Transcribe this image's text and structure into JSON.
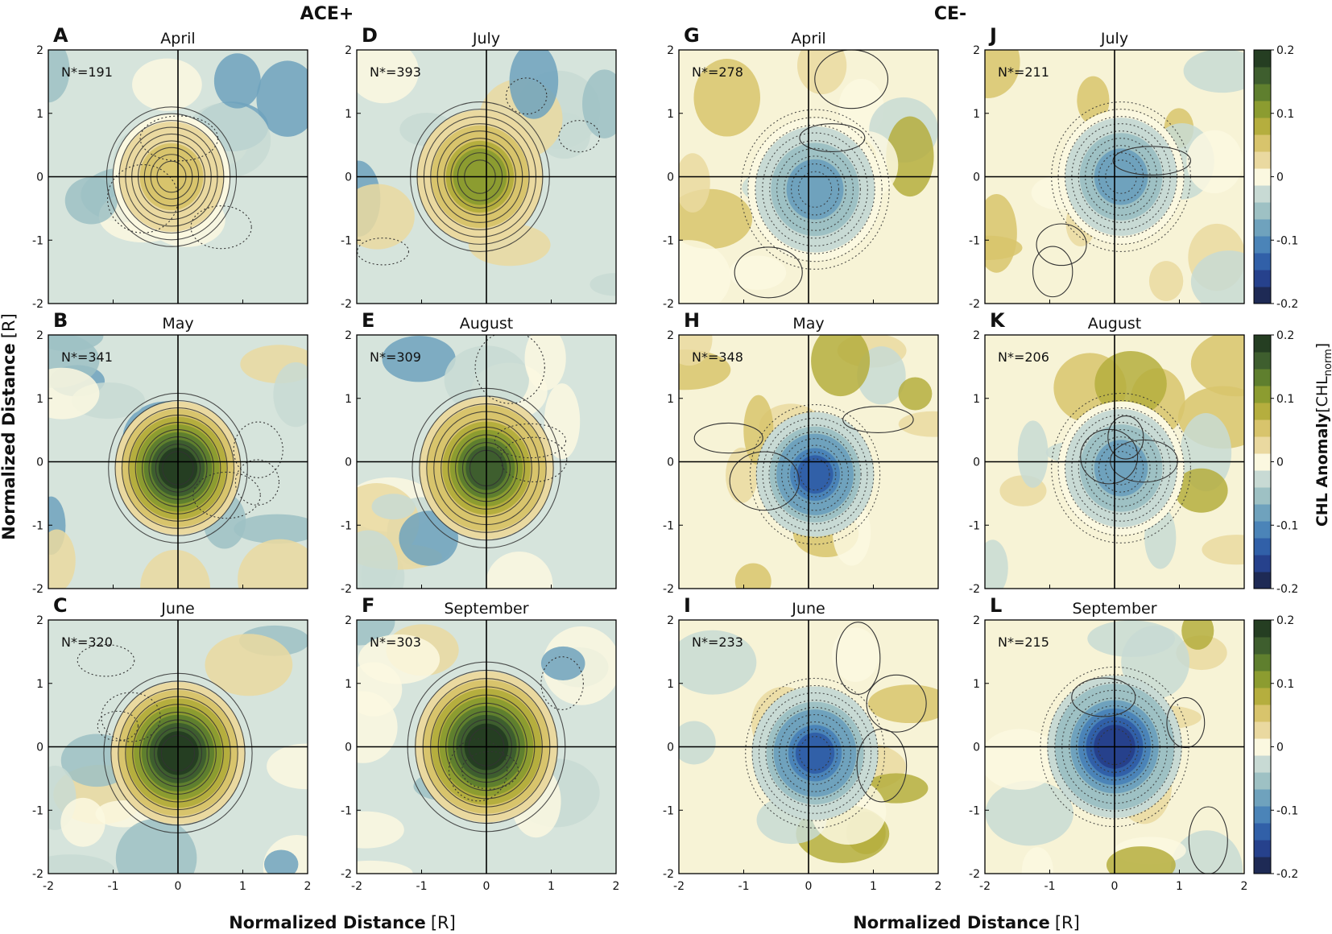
{
  "group_titles": {
    "left": "ACE+",
    "right": "CE-"
  },
  "axis": {
    "xlabel_bold": "Normalized Distance",
    "xlabel_unit": "[R]",
    "ylabel_bold": "Normalized Distance",
    "ylabel_unit": "[R]"
  },
  "colorbar": {
    "title_bold": "CHL Anomaly",
    "title_unit_pre": "[CHL",
    "title_unit_sub": "norm",
    "title_unit_post": "]",
    "tick_labels": [
      "0.2",
      "0.1",
      "0",
      "-0.1",
      "-0.2"
    ],
    "tick_values": [
      0.2,
      0.1,
      0,
      -0.1,
      -0.2
    ],
    "colors": [
      "#1e2a55",
      "#26418c",
      "#3160a8",
      "#4b84b8",
      "#6fa2bd",
      "#9ec1c4",
      "#c8dad4",
      "#fbf8e0",
      "#ead9a0",
      "#d8c46c",
      "#b5ae3e",
      "#8c9c30",
      "#5f7f2e",
      "#3e5e2e",
      "#253e22"
    ]
  },
  "chart_data": [
    {
      "type": "heatmap",
      "panel": "A",
      "month": "April",
      "n_label": "N*=191",
      "group": "ACE+",
      "peak_anomaly": 0.07,
      "center": [
        -0.1,
        0.0
      ],
      "radius": 0.7,
      "contours": "solid-positive",
      "xlim": [
        -2,
        2
      ],
      "ylim": [
        -2,
        2
      ],
      "xticks": [
        "-2",
        "-1",
        "0",
        "1",
        "2"
      ],
      "yticks": [
        "2",
        "1",
        "0",
        "-1",
        "-2"
      ]
    },
    {
      "type": "heatmap",
      "panel": "B",
      "month": "May",
      "n_label": "N*=341",
      "group": "ACE+",
      "peak_anomaly": 0.2,
      "center": [
        0.0,
        -0.1
      ],
      "radius": 0.75,
      "contours": "solid-positive",
      "xlim": [
        -2,
        2
      ],
      "ylim": [
        -2,
        2
      ],
      "xticks": [
        "-2",
        "-1",
        "0",
        "1",
        "2"
      ],
      "yticks": [
        "2",
        "1",
        "0",
        "-1",
        "-2"
      ]
    },
    {
      "type": "heatmap",
      "panel": "C",
      "month": "June",
      "n_label": "N*=320",
      "group": "ACE+",
      "peak_anomaly": 0.2,
      "center": [
        0.0,
        -0.1
      ],
      "radius": 0.8,
      "contours": "solid-positive",
      "xlim": [
        -2,
        2
      ],
      "ylim": [
        -2,
        2
      ],
      "xticks": [
        "-2",
        "-1",
        "0",
        "1",
        "2"
      ],
      "yticks": [
        "2",
        "1",
        "0",
        "-1",
        "-2"
      ]
    },
    {
      "type": "heatmap",
      "panel": "D",
      "month": "July",
      "n_label": "N*=393",
      "group": "ACE+",
      "peak_anomaly": 0.12,
      "center": [
        -0.1,
        0.0
      ],
      "radius": 0.75,
      "contours": "solid-positive",
      "xlim": [
        -2,
        2
      ],
      "ylim": [
        -2,
        2
      ],
      "xticks": [
        "-2",
        "-1",
        "0",
        "1",
        "2"
      ],
      "yticks": [
        "2",
        "1",
        "0",
        "-1",
        "-2"
      ]
    },
    {
      "type": "heatmap",
      "panel": "E",
      "month": "August",
      "n_label": "N*=309",
      "group": "ACE+",
      "peak_anomaly": 0.16,
      "center": [
        0.0,
        -0.1
      ],
      "radius": 0.8,
      "contours": "solid-positive",
      "xlim": [
        -2,
        2
      ],
      "ylim": [
        -2,
        2
      ],
      "xticks": [
        "-2",
        "-1",
        "0",
        "1",
        "2"
      ],
      "yticks": [
        "2",
        "1",
        "0",
        "-1",
        "-2"
      ]
    },
    {
      "type": "heatmap",
      "panel": "F",
      "month": "September",
      "n_label": "N*=303",
      "group": "ACE+",
      "peak_anomaly": 0.2,
      "center": [
        0.0,
        0.0
      ],
      "radius": 0.85,
      "contours": "solid-positive",
      "xlim": [
        -2,
        2
      ],
      "ylim": [
        -2,
        2
      ],
      "xticks": [
        "-2",
        "-1",
        "0",
        "1",
        "2"
      ],
      "yticks": [
        "2",
        "1",
        "0",
        "-1",
        "-2"
      ]
    },
    {
      "type": "heatmap",
      "panel": "G",
      "month": "April",
      "n_label": "N*=278",
      "group": "CE-",
      "peak_anomaly": -0.1,
      "center": [
        0.1,
        -0.2
      ],
      "radius": 0.8,
      "contours": "dotted-negative",
      "xlim": [
        -2,
        2
      ],
      "ylim": [
        -2,
        2
      ],
      "xticks": [
        "-2",
        "-1",
        "0",
        "1",
        "2"
      ],
      "yticks": [
        "2",
        "1",
        "0",
        "-1",
        "-2"
      ]
    },
    {
      "type": "heatmap",
      "panel": "H",
      "month": "May",
      "n_label": "N*=348",
      "group": "CE-",
      "peak_anomaly": -0.14,
      "center": [
        0.1,
        -0.2
      ],
      "radius": 0.7,
      "contours": "dotted-negative",
      "xlim": [
        -2,
        2
      ],
      "ylim": [
        -2,
        2
      ],
      "xticks": [
        "-2",
        "-1",
        "0",
        "1",
        "2"
      ],
      "yticks": [
        "2",
        "1",
        "0",
        "-1",
        "-2"
      ]
    },
    {
      "type": "heatmap",
      "panel": "I",
      "month": "June",
      "n_label": "N*=233",
      "group": "CE-",
      "peak_anomaly": -0.14,
      "center": [
        0.1,
        -0.1
      ],
      "radius": 0.75,
      "contours": "dotted-negative",
      "xlim": [
        -2,
        2
      ],
      "ylim": [
        -2,
        2
      ],
      "xticks": [
        "-2",
        "-1",
        "0",
        "1",
        "2"
      ],
      "yticks": [
        "2",
        "1",
        "0",
        "-1",
        "-2"
      ]
    },
    {
      "type": "heatmap",
      "panel": "J",
      "month": "July",
      "n_label": "N*=211",
      "group": "CE-",
      "peak_anomaly": -0.1,
      "center": [
        0.1,
        0.0
      ],
      "radius": 0.75,
      "contours": "dotted-negative",
      "xlim": [
        -2,
        2
      ],
      "ylim": [
        -2,
        2
      ],
      "xticks": [
        "-2",
        "-1",
        "0",
        "1",
        "2"
      ],
      "yticks": [
        "2",
        "1",
        "0",
        "-1",
        "-2"
      ]
    },
    {
      "type": "heatmap",
      "panel": "K",
      "month": "August",
      "n_label": "N*=206",
      "group": "CE-",
      "peak_anomaly": -0.1,
      "center": [
        0.1,
        -0.1
      ],
      "radius": 0.75,
      "contours": "dotted-negative",
      "xlim": [
        -2,
        2
      ],
      "ylim": [
        -2,
        2
      ],
      "xticks": [
        "-2",
        "-1",
        "0",
        "1",
        "2"
      ],
      "yticks": [
        "2",
        "1",
        "0",
        "-1",
        "-2"
      ]
    },
    {
      "type": "heatmap",
      "panel": "L",
      "month": "September",
      "n_label": "N*=215",
      "group": "CE-",
      "peak_anomaly": -0.16,
      "center": [
        0.0,
        0.0
      ],
      "radius": 0.8,
      "contours": "dotted-negative",
      "xlim": [
        -2,
        2
      ],
      "ylim": [
        -2,
        2
      ],
      "xticks": [
        "-2",
        "-1",
        "0",
        "1",
        "2"
      ],
      "yticks": [
        "2",
        "1",
        "0",
        "-1",
        "-2"
      ]
    }
  ]
}
